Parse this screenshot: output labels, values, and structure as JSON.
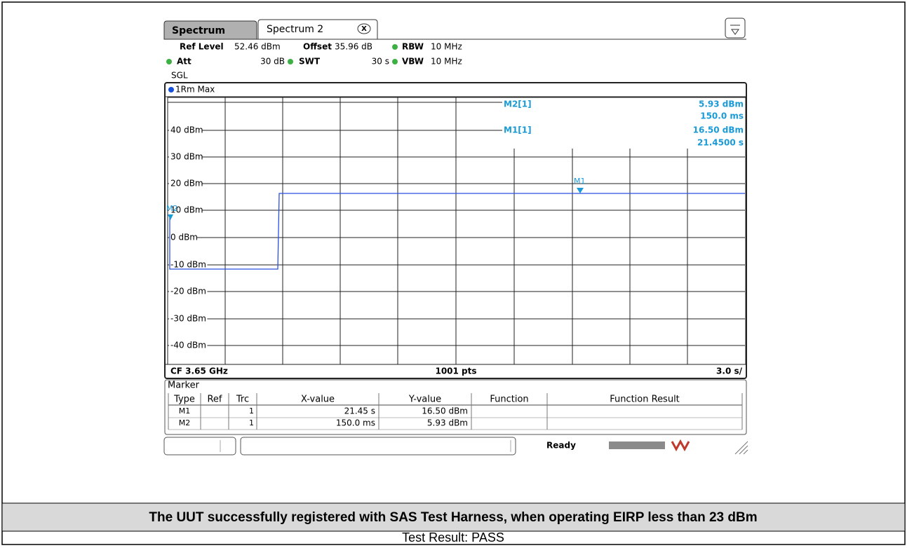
{
  "tabs": [
    "Spectrum",
    "Spectrum 2"
  ],
  "close": "X",
  "settings": {
    "ref_level_label": "Ref Level",
    "ref_level": "52.46 dBm",
    "offset_label": "Offset",
    "offset": "35.96 dB",
    "rbw_label": "RBW",
    "rbw": "10 MHz",
    "att_label": "Att",
    "att": "30 dB",
    "swt_label": "SWT",
    "swt": "30 s",
    "vbw_label": "VBW",
    "vbw": "10 MHz",
    "mode": "SGL"
  },
  "trace_label": "1Rm Max",
  "y_labels": [
    "40 dBm",
    "30 dBm",
    "20 dBm",
    "10 dBm",
    "0 dBm",
    "-10 dBm",
    "-20 dBm",
    "-30 dBm",
    "-40 dBm"
  ],
  "marker_readout": [
    {
      "name": "M2[1]",
      "y": "5.93 dBm",
      "x": "150.0 ms"
    },
    {
      "name": "M1[1]",
      "y": "16.50 dBm",
      "x": "21.4500 s"
    }
  ],
  "marker_flags": [
    "M1",
    "M2"
  ],
  "footer": {
    "center_freq": "CF 3.65 GHz",
    "points": "1001 pts",
    "sweep": "3.0 s/"
  },
  "marker_table": {
    "title": "Marker",
    "header": [
      "Type",
      "Ref",
      "Trc",
      "X-value",
      "Y-value",
      "Function",
      "Function Result"
    ],
    "rows": [
      {
        "type": "M1",
        "trc": "1",
        "x": "21.45 s",
        "y": "16.50 dBm"
      },
      {
        "type": "M2",
        "trc": "1",
        "x": "150.0 ms",
        "y": "5.93 dBm"
      }
    ]
  },
  "status": "Ready",
  "caption": "The UUT successfully registered with SAS Test Harness, when operating EIRP less than 23 dBm",
  "result": "Test Result: PASS"
}
